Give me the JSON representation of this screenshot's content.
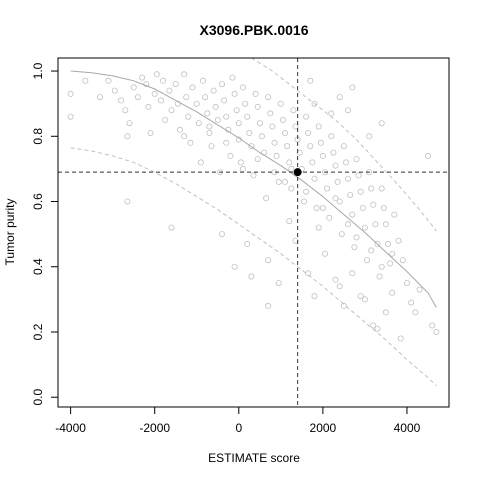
{
  "chart_data": {
    "type": "scatter",
    "title": "X3096.PBK.0016",
    "xlabel": "ESTIMATE score",
    "ylabel": "Tumor purity",
    "xlim": [
      -4300,
      5000
    ],
    "ylim": [
      -0.03,
      1.04
    ],
    "xticks": [
      -4000,
      -2000,
      0,
      2000,
      4000
    ],
    "xtick_labels": [
      "-4000",
      "-2000",
      "0",
      "2000",
      "4000"
    ],
    "yticks": [
      0.0,
      0.2,
      0.4,
      0.6,
      0.8,
      1.0
    ],
    "ytick_labels": [
      "0.0",
      "0.2",
      "0.4",
      "0.6",
      "0.8",
      "1.0"
    ],
    "grid": false,
    "colors": {
      "points": "#c0c0c0",
      "fit_line": "#a8a8a8",
      "interval_lines": "#c0c0c0",
      "reference_lines": "#333333",
      "sample_point": "#000000"
    },
    "sample": {
      "x": 1400,
      "y": 0.69
    },
    "fit_curve": {
      "x": [
        -4000,
        -3500,
        -3000,
        -2500,
        -2000,
        -1500,
        -1000,
        -500,
        0,
        500,
        1000,
        1500,
        2000,
        2500,
        3000,
        3500,
        4000,
        4500,
        4700
      ],
      "y": [
        1.0,
        0.995,
        0.985,
        0.97,
        0.945,
        0.91,
        0.875,
        0.835,
        0.795,
        0.75,
        0.71,
        0.665,
        0.615,
        0.56,
        0.505,
        0.445,
        0.385,
        0.32,
        0.275
      ]
    },
    "lower_interval": {
      "x": [
        -4000,
        -3500,
        -3000,
        -2500,
        -2000,
        -1500,
        -1000,
        -500,
        0,
        500,
        1000,
        1500,
        2000,
        2500,
        3000,
        3500,
        4000,
        4500,
        4700
      ],
      "y": [
        0.765,
        0.755,
        0.74,
        0.72,
        0.69,
        0.655,
        0.615,
        0.575,
        0.53,
        0.485,
        0.44,
        0.39,
        0.34,
        0.285,
        0.23,
        0.175,
        0.115,
        0.06,
        0.035
      ]
    },
    "upper_interval": {
      "x": [
        300,
        800,
        1300,
        1800,
        2300,
        2800,
        3300,
        3800,
        4300,
        4700
      ],
      "y": [
        1.04,
        1.0,
        0.95,
        0.9,
        0.85,
        0.79,
        0.72,
        0.65,
        0.575,
        0.51
      ]
    },
    "points": [
      [
        -4000,
        0.93
      ],
      [
        -4000,
        0.86
      ],
      [
        -3650,
        0.97
      ],
      [
        -3300,
        0.92
      ],
      [
        -3100,
        0.97
      ],
      [
        -2950,
        0.94
      ],
      [
        -2800,
        0.91
      ],
      [
        -2700,
        0.88
      ],
      [
        -2650,
        0.8
      ],
      [
        -2600,
        0.84
      ],
      [
        -2500,
        0.95
      ],
      [
        -2400,
        0.92
      ],
      [
        -2300,
        0.98
      ],
      [
        -2200,
        0.96
      ],
      [
        -2150,
        0.89
      ],
      [
        -2100,
        0.81
      ],
      [
        -2000,
        0.93
      ],
      [
        -1950,
        0.99
      ],
      [
        -1850,
        0.91
      ],
      [
        -1800,
        0.97
      ],
      [
        -1750,
        0.85
      ],
      [
        -1650,
        0.94
      ],
      [
        -1600,
        0.88
      ],
      [
        -1500,
        0.96
      ],
      [
        -1450,
        0.9
      ],
      [
        -1400,
        0.82
      ],
      [
        -1300,
        0.99
      ],
      [
        -1250,
        0.92
      ],
      [
        -1200,
        0.86
      ],
      [
        -1150,
        0.78
      ],
      [
        -1100,
        0.95
      ],
      [
        -1000,
        0.9
      ],
      [
        -950,
        0.84
      ],
      [
        -900,
        0.72
      ],
      [
        -850,
        0.97
      ],
      [
        -800,
        0.92
      ],
      [
        -750,
        0.87
      ],
      [
        -700,
        0.81
      ],
      [
        -650,
        0.77
      ],
      [
        -600,
        0.94
      ],
      [
        -550,
        0.89
      ],
      [
        -500,
        0.85
      ],
      [
        -450,
        0.69
      ],
      [
        -400,
        0.96
      ],
      [
        -350,
        0.91
      ],
      [
        -300,
        0.86
      ],
      [
        -250,
        0.82
      ],
      [
        -200,
        0.74
      ],
      [
        -150,
        0.98
      ],
      [
        -100,
        0.93
      ],
      [
        -50,
        0.88
      ],
      [
        0,
        0.84
      ],
      [
        0,
        0.79
      ],
      [
        50,
        0.72
      ],
      [
        100,
        0.95
      ],
      [
        150,
        0.9
      ],
      [
        200,
        0.86
      ],
      [
        250,
        0.81
      ],
      [
        300,
        0.77
      ],
      [
        350,
        0.68
      ],
      [
        400,
        0.93
      ],
      [
        450,
        0.89
      ],
      [
        500,
        0.84
      ],
      [
        550,
        0.8
      ],
      [
        600,
        0.75
      ],
      [
        650,
        0.61
      ],
      [
        700,
        0.92
      ],
      [
        750,
        0.87
      ],
      [
        800,
        0.83
      ],
      [
        850,
        0.78
      ],
      [
        900,
        0.74
      ],
      [
        950,
        0.66
      ],
      [
        1000,
        0.9
      ],
      [
        1050,
        0.85
      ],
      [
        1100,
        0.81
      ],
      [
        1150,
        0.77
      ],
      [
        1200,
        0.72
      ],
      [
        1250,
        0.64
      ],
      [
        1300,
        0.88
      ],
      [
        1350,
        0.83
      ],
      [
        1400,
        0.79
      ],
      [
        1450,
        0.75
      ],
      [
        1500,
        0.7
      ],
      [
        1550,
        0.6
      ],
      [
        1600,
        0.86
      ],
      [
        1650,
        0.81
      ],
      [
        1700,
        0.77
      ],
      [
        1750,
        0.72
      ],
      [
        1800,
        0.67
      ],
      [
        1850,
        0.58
      ],
      [
        1900,
        0.83
      ],
      [
        1950,
        0.78
      ],
      [
        2000,
        0.74
      ],
      [
        2050,
        0.69
      ],
      [
        2100,
        0.64
      ],
      [
        2150,
        0.55
      ],
      [
        2200,
        0.8
      ],
      [
        2250,
        0.75
      ],
      [
        2300,
        0.71
      ],
      [
        2350,
        0.66
      ],
      [
        2400,
        0.6
      ],
      [
        2450,
        0.5
      ],
      [
        2500,
        0.77
      ],
      [
        2550,
        0.72
      ],
      [
        2600,
        0.67
      ],
      [
        2650,
        0.62
      ],
      [
        2700,
        0.56
      ],
      [
        2750,
        0.46
      ],
      [
        2800,
        0.73
      ],
      [
        2850,
        0.68
      ],
      [
        2900,
        0.63
      ],
      [
        2950,
        0.58
      ],
      [
        3000,
        0.52
      ],
      [
        3050,
        0.42
      ],
      [
        3100,
        0.69
      ],
      [
        3150,
        0.64
      ],
      [
        3200,
        0.59
      ],
      [
        3250,
        0.53
      ],
      [
        3300,
        0.47
      ],
      [
        3350,
        0.37
      ],
      [
        3400,
        0.64
      ],
      [
        3450,
        0.58
      ],
      [
        3500,
        0.53
      ],
      [
        3550,
        0.47
      ],
      [
        3600,
        0.41
      ],
      [
        3650,
        0.32
      ],
      [
        3700,
        0.56
      ],
      [
        3800,
        0.48
      ],
      [
        3900,
        0.42
      ],
      [
        4000,
        0.35
      ],
      [
        4100,
        0.29
      ],
      [
        4200,
        0.26
      ],
      [
        4300,
        0.33
      ],
      [
        4500,
        0.74
      ],
      [
        4600,
        0.22
      ],
      [
        4700,
        0.2
      ],
      [
        -2650,
        0.6
      ],
      [
        -1600,
        0.52
      ],
      [
        -400,
        0.5
      ],
      [
        -100,
        0.4
      ],
      [
        200,
        0.47
      ],
      [
        300,
        0.37
      ],
      [
        700,
        0.28
      ],
      [
        950,
        0.35
      ],
      [
        1200,
        0.54
      ],
      [
        1350,
        0.48
      ],
      [
        1650,
        0.38
      ],
      [
        1800,
        0.31
      ],
      [
        2050,
        0.44
      ],
      [
        2300,
        0.36
      ],
      [
        2500,
        0.28
      ],
      [
        2700,
        0.38
      ],
      [
        2900,
        0.31
      ],
      [
        3200,
        0.22
      ],
      [
        3300,
        0.21
      ],
      [
        3500,
        0.26
      ],
      [
        3850,
        0.18
      ],
      [
        700,
        0.42
      ],
      [
        1900,
        0.52
      ],
      [
        2400,
        0.34
      ],
      [
        3000,
        0.3
      ],
      [
        1800,
        0.9
      ],
      [
        2200,
        0.87
      ],
      [
        2700,
        0.95
      ],
      [
        3400,
        0.84
      ],
      [
        3100,
        0.8
      ],
      [
        2400,
        0.92
      ],
      [
        1700,
        0.97
      ],
      [
        2600,
        0.88
      ],
      [
        -1300,
        0.8
      ],
      [
        -700,
        0.83
      ],
      [
        -300,
        0.78
      ],
      [
        100,
        0.7
      ],
      [
        450,
        0.73
      ],
      [
        850,
        0.69
      ],
      [
        1100,
        0.66
      ],
      [
        1250,
        0.7
      ],
      [
        1600,
        0.63
      ],
      [
        2000,
        0.58
      ],
      [
        2300,
        0.61
      ],
      [
        2600,
        0.53
      ],
      [
        2800,
        0.49
      ],
      [
        3150,
        0.45
      ],
      [
        3400,
        0.4
      ],
      [
        3650,
        0.44
      ]
    ]
  }
}
